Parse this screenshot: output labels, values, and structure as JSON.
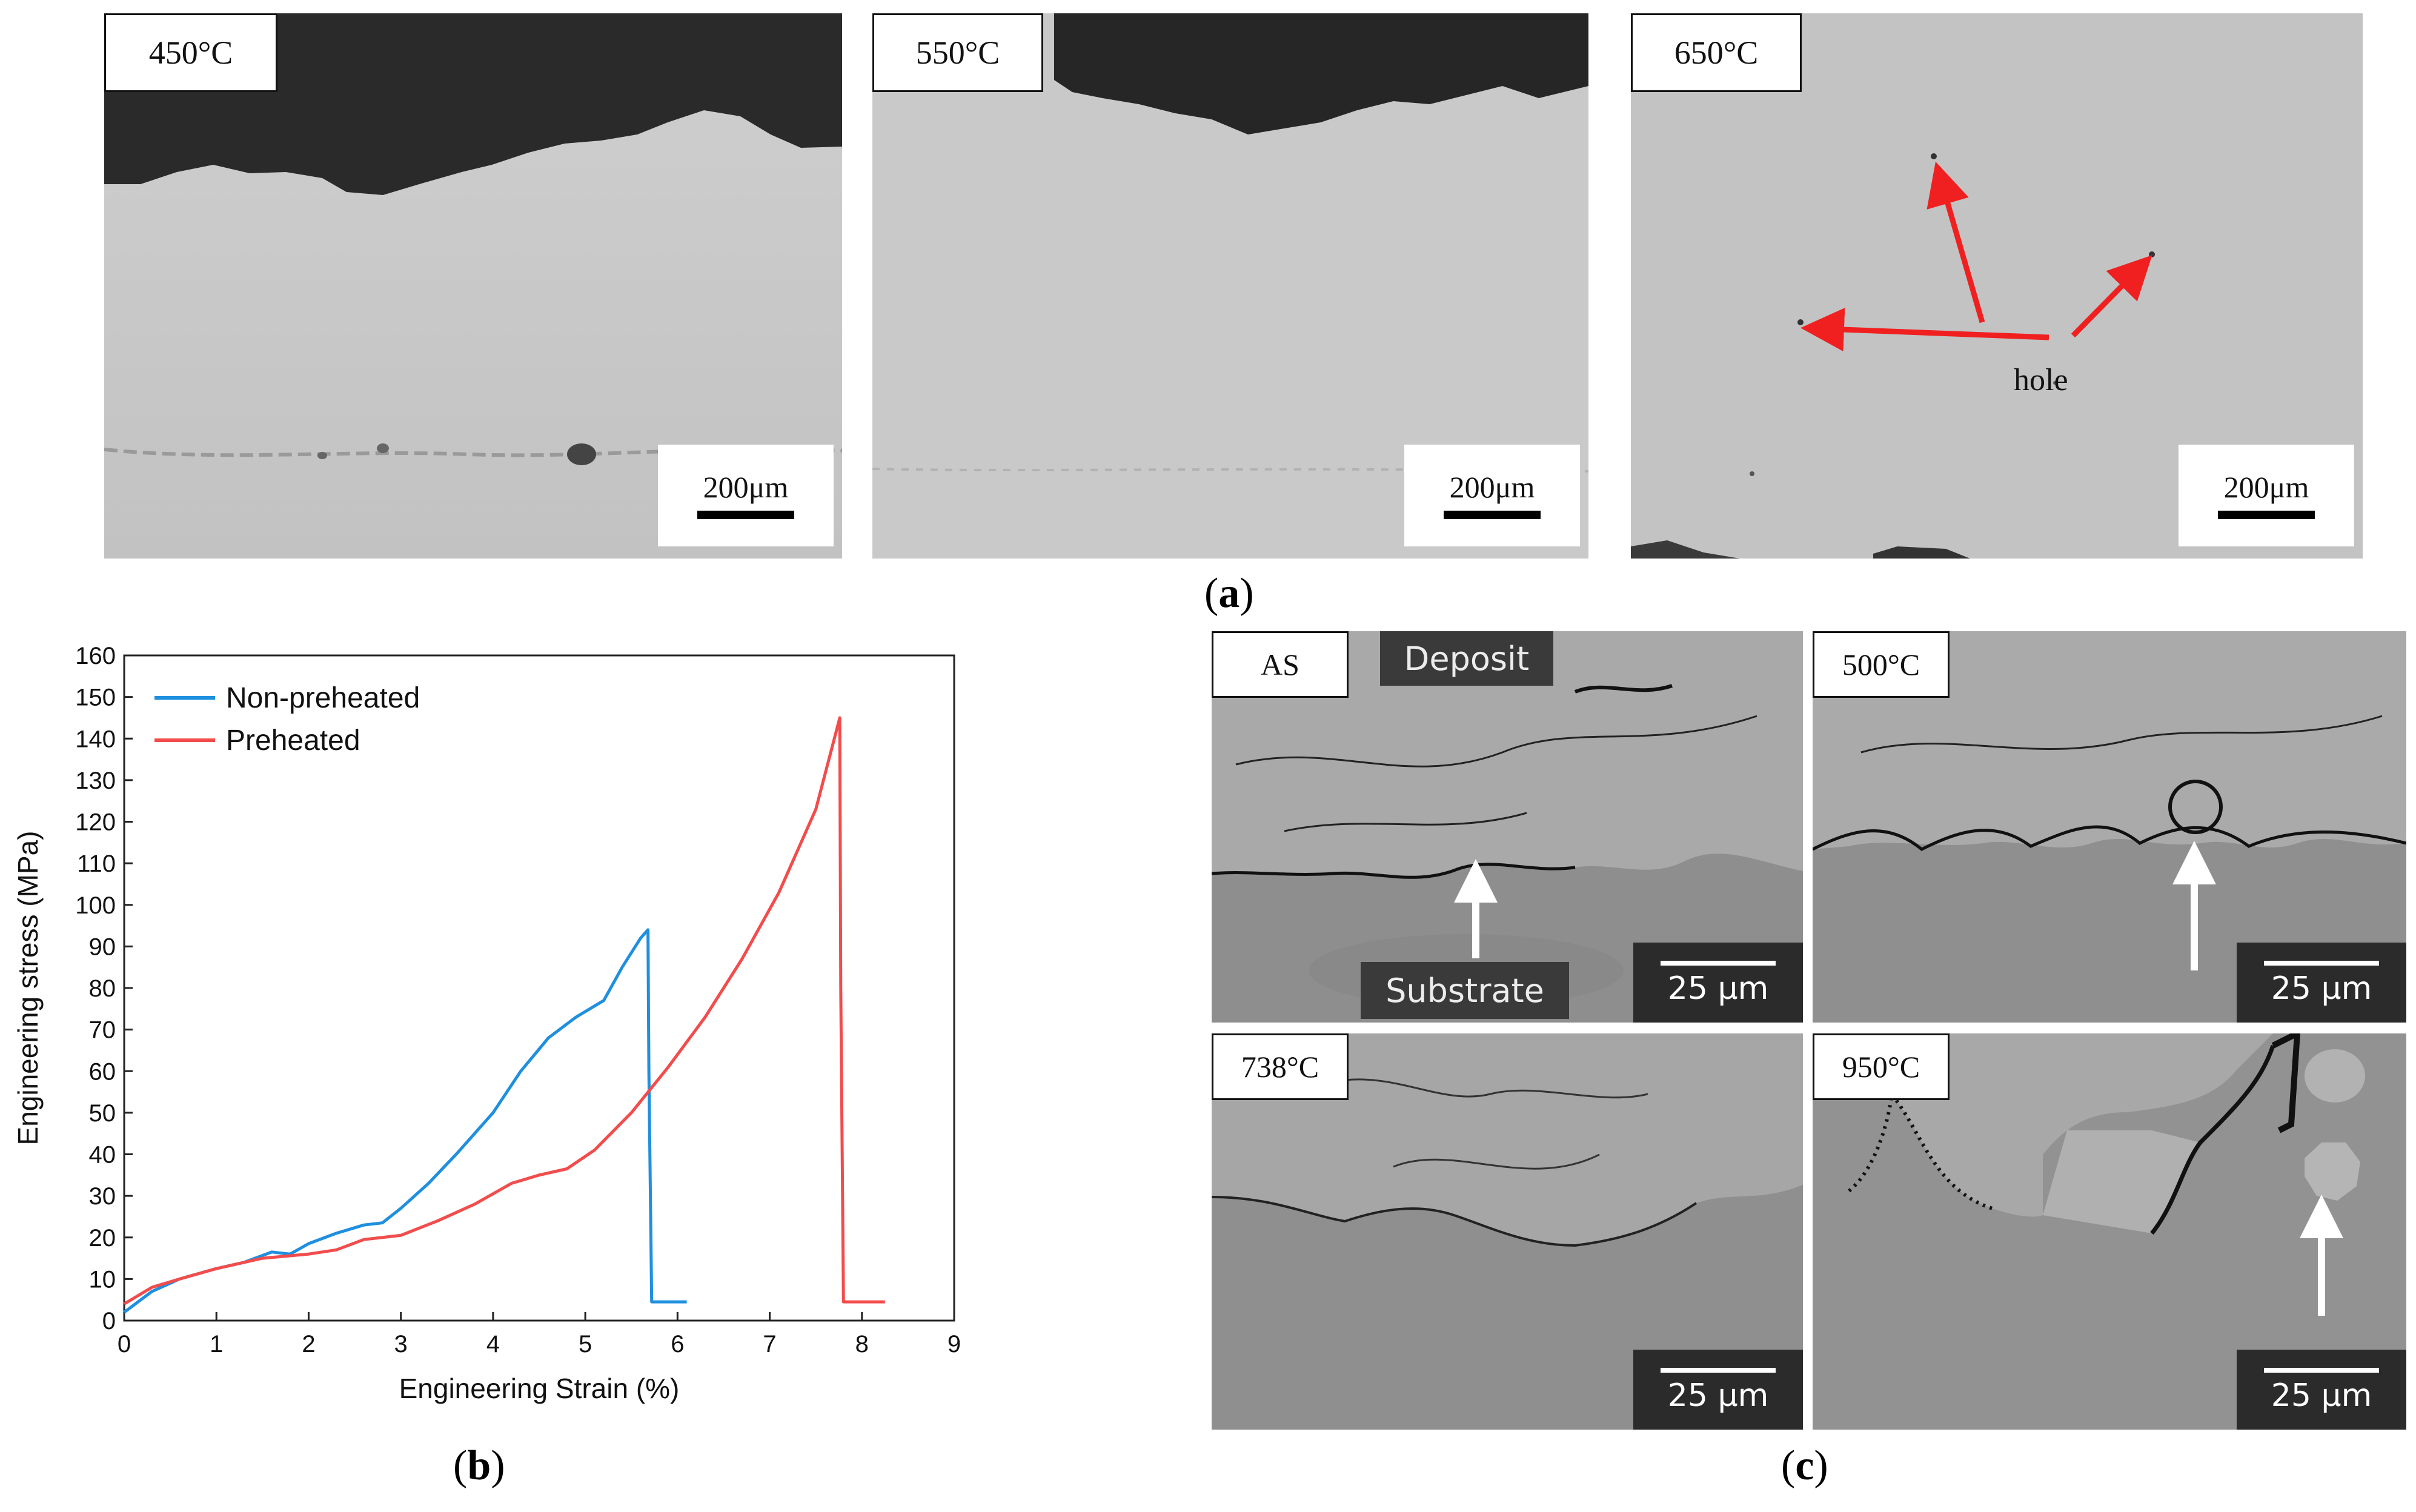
{
  "panel_a": {
    "caption_letter": "a",
    "images": [
      {
        "label": "450°C",
        "scale": "200μm"
      },
      {
        "label": "550°C",
        "scale": "200μm"
      },
      {
        "label": "650°C",
        "scale": "200μm",
        "annotation": "hole"
      }
    ]
  },
  "panel_b": {
    "caption_letter": "b",
    "chart_data": {
      "type": "line",
      "xlabel": "Engineering Strain (%)",
      "ylabel": "Engineering stress (MPa)",
      "xlim": [
        0,
        9
      ],
      "ylim": [
        0,
        160
      ],
      "xticks": [
        "0",
        "1",
        "2",
        "3",
        "4",
        "5",
        "6",
        "7",
        "8",
        "9"
      ],
      "yticks": [
        "0",
        "10",
        "20",
        "30",
        "40",
        "50",
        "60",
        "70",
        "80",
        "90",
        "100",
        "110",
        "120",
        "130",
        "140",
        "150",
        "160"
      ],
      "legend": "top-left",
      "series": [
        {
          "name": "Non-preheated",
          "color": "#1f8fdf",
          "x": [
            0,
            0.3,
            0.6,
            1.0,
            1.3,
            1.6,
            1.8,
            2.0,
            2.3,
            2.6,
            2.8,
            3.0,
            3.3,
            3.6,
            4.0,
            4.3,
            4.6,
            4.9,
            5.2,
            5.4,
            5.6,
            5.68,
            5.69,
            5.72,
            6.1
          ],
          "y": [
            2,
            7,
            10,
            12.5,
            14,
            16.5,
            16,
            18.5,
            21,
            23,
            23.5,
            27,
            33,
            40,
            50,
            60,
            68,
            73,
            77,
            85,
            92,
            94,
            60,
            4.5,
            4.5
          ]
        },
        {
          "name": "Preheated",
          "color": "#f24c4c",
          "x": [
            0,
            0.3,
            0.6,
            1.0,
            1.5,
            2.0,
            2.3,
            2.6,
            3.0,
            3.4,
            3.8,
            4.2,
            4.5,
            4.8,
            5.1,
            5.5,
            5.9,
            6.3,
            6.7,
            7.1,
            7.5,
            7.76,
            7.77,
            7.8,
            8.25
          ],
          "y": [
            4,
            8,
            10,
            12.5,
            15,
            16,
            17,
            19.5,
            20.5,
            24,
            28,
            33,
            35,
            36.5,
            41,
            50,
            61,
            73,
            87,
            103,
            123,
            145,
            80,
            4.5,
            4.5
          ]
        }
      ]
    }
  },
  "panel_c": {
    "caption_letter": "c",
    "images": [
      {
        "label": "AS",
        "scale": "25 μm",
        "text_top": "Deposit",
        "text_bottom": "Substrate"
      },
      {
        "label": "500°C",
        "scale": "25 μm"
      },
      {
        "label": "738°C",
        "scale": "25 μm"
      },
      {
        "label": "950°C",
        "scale": "25 μm"
      }
    ]
  }
}
